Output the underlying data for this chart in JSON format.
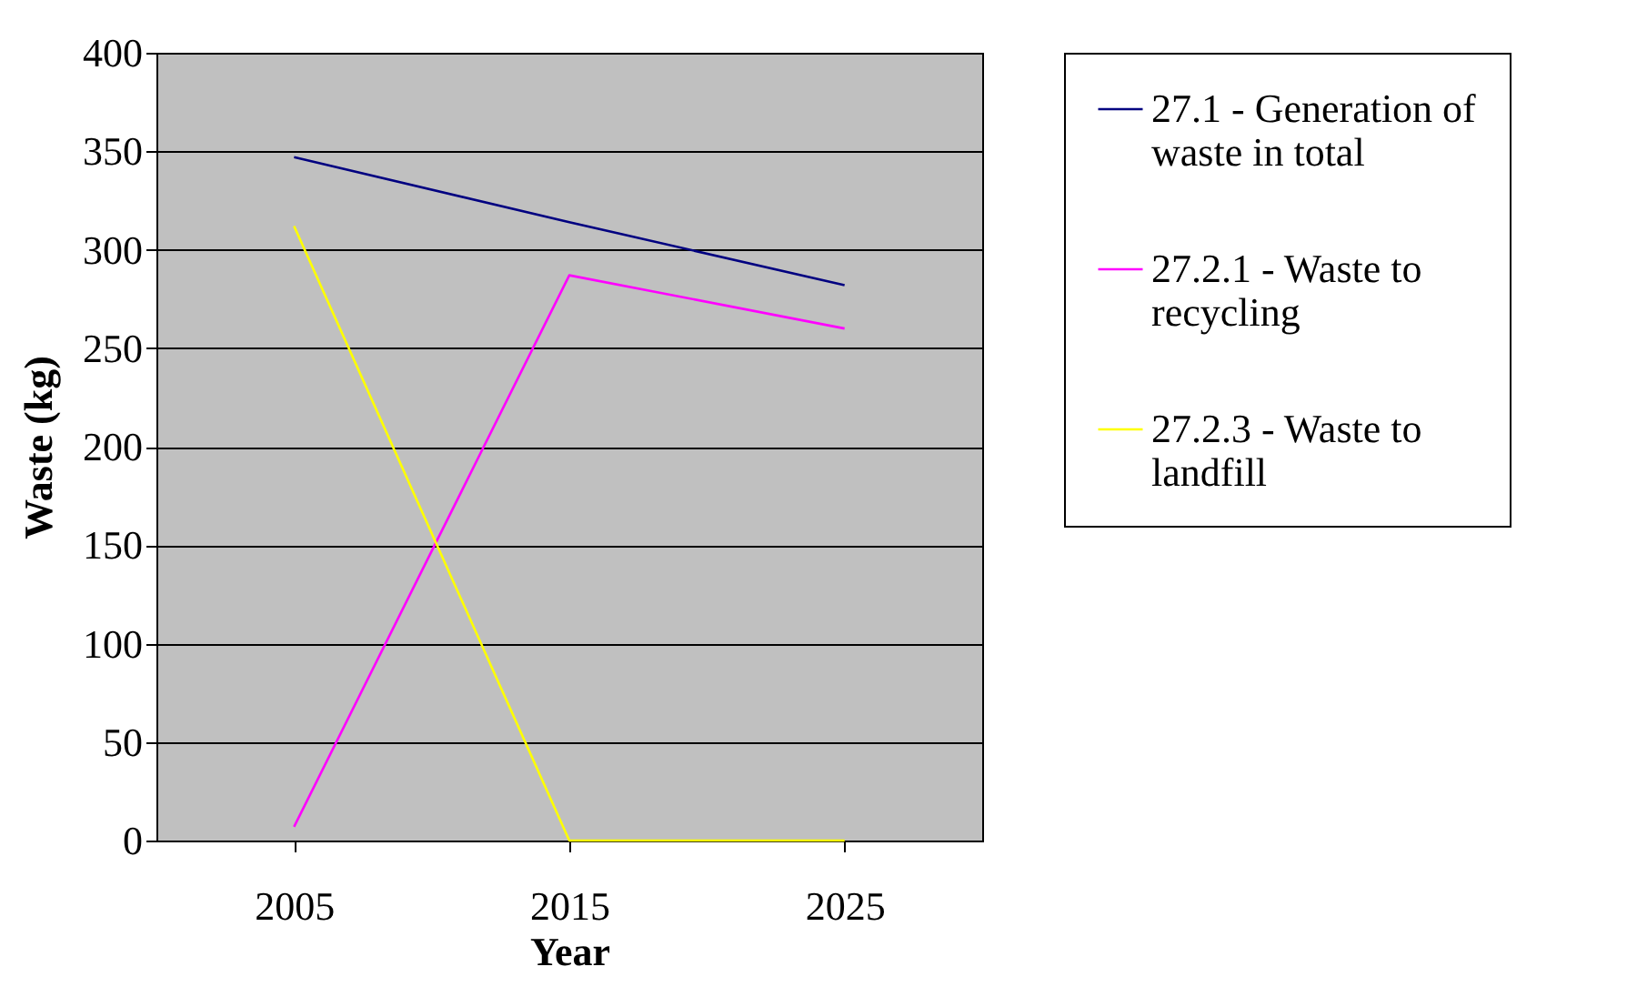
{
  "chart_data": {
    "type": "line",
    "xlabel": "Year",
    "ylabel": "Waste (kg)",
    "categories": [
      "2005",
      "2015",
      "2025"
    ],
    "series": [
      {
        "name": "27.1 - Generation of waste in total",
        "color": "#000080",
        "values": [
          347,
          314,
          282
        ]
      },
      {
        "name": "27.2.1 - Waste to recycling",
        "color": "#ff00ff",
        "values": [
          7,
          287,
          260
        ]
      },
      {
        "name": "27.2.3 - Waste to landfill",
        "color": "#ffff00",
        "values": [
          312,
          0,
          0
        ]
      }
    ],
    "ylim": [
      0,
      400
    ],
    "yticks": [
      0,
      50,
      100,
      150,
      200,
      250,
      300,
      350,
      400
    ],
    "grid": "y",
    "legend": "right",
    "marker": "none"
  }
}
